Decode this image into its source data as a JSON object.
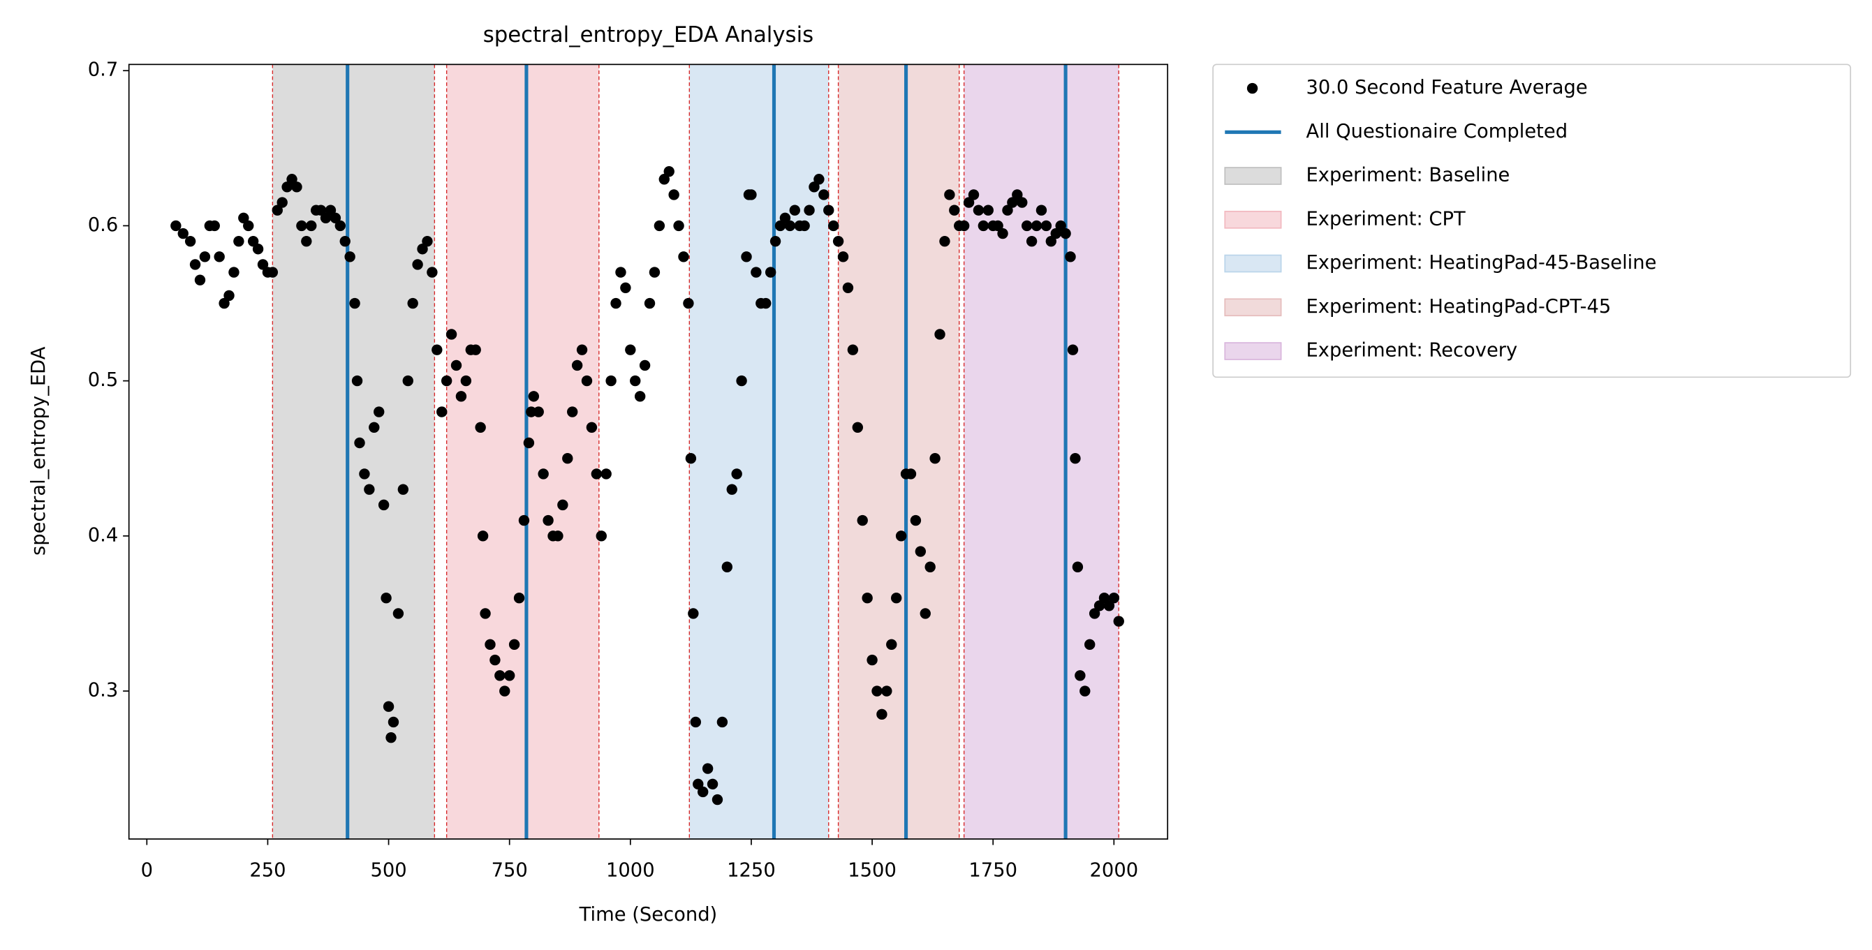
{
  "chart_data": {
    "type": "scatter",
    "title": "spectral_entropy_EDA Analysis",
    "x_label": "Time (Second)",
    "y_label": "spectral_entropy_EDA",
    "xlim": [
      -37,
      2111
    ],
    "ylim": [
      0.2046,
      0.704
    ],
    "xticks": [
      0,
      250,
      500,
      750,
      1000,
      1250,
      1500,
      1750,
      2000
    ],
    "yticks": [
      0.3,
      0.4,
      0.5,
      0.6,
      0.7
    ],
    "series": [
      {
        "name": "30.0 Second Feature Average",
        "color": "#000000",
        "x": [
          60,
          75,
          90,
          100,
          110,
          120,
          130,
          140,
          150,
          160,
          170,
          180,
          190,
          200,
          210,
          220,
          230,
          240,
          250,
          260,
          270,
          280,
          290,
          300,
          310,
          320,
          330,
          340,
          350,
          360,
          370,
          380,
          390,
          400,
          410,
          420,
          430,
          435,
          440,
          450,
          460,
          470,
          480,
          490,
          495,
          500,
          505,
          510,
          520,
          530,
          540,
          550,
          560,
          570,
          580,
          590,
          600,
          610,
          620,
          630,
          640,
          650,
          660,
          670,
          680,
          690,
          695,
          700,
          710,
          720,
          730,
          740,
          750,
          760,
          770,
          780,
          790,
          795,
          800,
          810,
          820,
          830,
          840,
          850,
          860,
          870,
          880,
          890,
          900,
          910,
          920,
          930,
          940,
          950,
          960,
          970,
          980,
          990,
          1000,
          1010,
          1020,
          1030,
          1040,
          1050,
          1060,
          1070,
          1080,
          1090,
          1100,
          1110,
          1120,
          1125,
          1130,
          1135,
          1140,
          1150,
          1160,
          1170,
          1180,
          1190,
          1200,
          1210,
          1220,
          1230,
          1240,
          1245,
          1250,
          1260,
          1270,
          1280,
          1290,
          1300,
          1310,
          1320,
          1330,
          1340,
          1350,
          1360,
          1370,
          1380,
          1390,
          1400,
          1410,
          1420,
          1430,
          1440,
          1450,
          1460,
          1470,
          1480,
          1490,
          1500,
          1510,
          1520,
          1530,
          1540,
          1550,
          1560,
          1570,
          1580,
          1590,
          1600,
          1610,
          1620,
          1630,
          1640,
          1650,
          1660,
          1670,
          1680,
          1690,
          1700,
          1710,
          1720,
          1730,
          1740,
          1750,
          1760,
          1770,
          1780,
          1790,
          1800,
          1810,
          1820,
          1830,
          1840,
          1850,
          1860,
          1870,
          1880,
          1890,
          1900,
          1910,
          1915,
          1920,
          1925,
          1930,
          1940,
          1950,
          1960,
          1970,
          1980,
          1990,
          2000,
          2010
        ],
        "values": [
          0.6,
          0.595,
          0.59,
          0.575,
          0.565,
          0.58,
          0.6,
          0.6,
          0.58,
          0.55,
          0.555,
          0.57,
          0.59,
          0.605,
          0.6,
          0.59,
          0.585,
          0.575,
          0.57,
          0.57,
          0.61,
          0.615,
          0.625,
          0.63,
          0.625,
          0.6,
          0.59,
          0.6,
          0.61,
          0.61,
          0.605,
          0.61,
          0.605,
          0.6,
          0.59,
          0.58,
          0.55,
          0.5,
          0.46,
          0.44,
          0.43,
          0.47,
          0.48,
          0.42,
          0.36,
          0.29,
          0.27,
          0.28,
          0.35,
          0.43,
          0.5,
          0.55,
          0.575,
          0.585,
          0.59,
          0.57,
          0.52,
          0.48,
          0.5,
          0.53,
          0.51,
          0.49,
          0.5,
          0.52,
          0.52,
          0.47,
          0.4,
          0.35,
          0.33,
          0.32,
          0.31,
          0.3,
          0.31,
          0.33,
          0.36,
          0.41,
          0.46,
          0.48,
          0.49,
          0.48,
          0.44,
          0.41,
          0.4,
          0.4,
          0.42,
          0.45,
          0.48,
          0.51,
          0.52,
          0.5,
          0.47,
          0.44,
          0.4,
          0.44,
          0.5,
          0.55,
          0.57,
          0.56,
          0.52,
          0.5,
          0.49,
          0.51,
          0.55,
          0.57,
          0.6,
          0.63,
          0.635,
          0.62,
          0.6,
          0.58,
          0.55,
          0.45,
          0.35,
          0.28,
          0.24,
          0.235,
          0.25,
          0.24,
          0.23,
          0.28,
          0.38,
          0.43,
          0.44,
          0.5,
          0.58,
          0.62,
          0.62,
          0.57,
          0.55,
          0.55,
          0.57,
          0.59,
          0.6,
          0.605,
          0.6,
          0.61,
          0.6,
          0.6,
          0.61,
          0.625,
          0.63,
          0.62,
          0.61,
          0.6,
          0.59,
          0.58,
          0.56,
          0.52,
          0.47,
          0.41,
          0.36,
          0.32,
          0.3,
          0.285,
          0.3,
          0.33,
          0.36,
          0.4,
          0.44,
          0.44,
          0.41,
          0.39,
          0.35,
          0.38,
          0.45,
          0.53,
          0.59,
          0.62,
          0.61,
          0.6,
          0.6,
          0.615,
          0.62,
          0.61,
          0.6,
          0.61,
          0.6,
          0.6,
          0.595,
          0.61,
          0.615,
          0.62,
          0.615,
          0.6,
          0.59,
          0.6,
          0.61,
          0.6,
          0.59,
          0.595,
          0.6,
          0.595,
          0.58,
          0.52,
          0.45,
          0.38,
          0.31,
          0.3,
          0.33,
          0.35,
          0.355,
          0.36,
          0.355,
          0.36,
          0.345
        ]
      }
    ],
    "vlines": {
      "name": "All Questionaire Completed",
      "color": "#1f77b4",
      "x": [
        415,
        785,
        1297,
        1570,
        1900
      ]
    },
    "spans": [
      {
        "name": "Experiment: Baseline",
        "color": "#bfbfbf",
        "start": 260,
        "end": 595
      },
      {
        "name": "Experiment: CPT",
        "color": "#f2b8bf",
        "start": 620,
        "end": 935
      },
      {
        "name": "Experiment: HeatingPad-45-Baseline",
        "color": "#b9d4ea",
        "start": 1122,
        "end": 1410
      },
      {
        "name": "Experiment: HeatingPad-CPT-45",
        "color": "#e5bcbc",
        "start": 1430,
        "end": 1680
      },
      {
        "name": "Experiment: Recovery",
        "color": "#d9b5dc",
        "start": 1690,
        "end": 2010
      }
    ]
  }
}
